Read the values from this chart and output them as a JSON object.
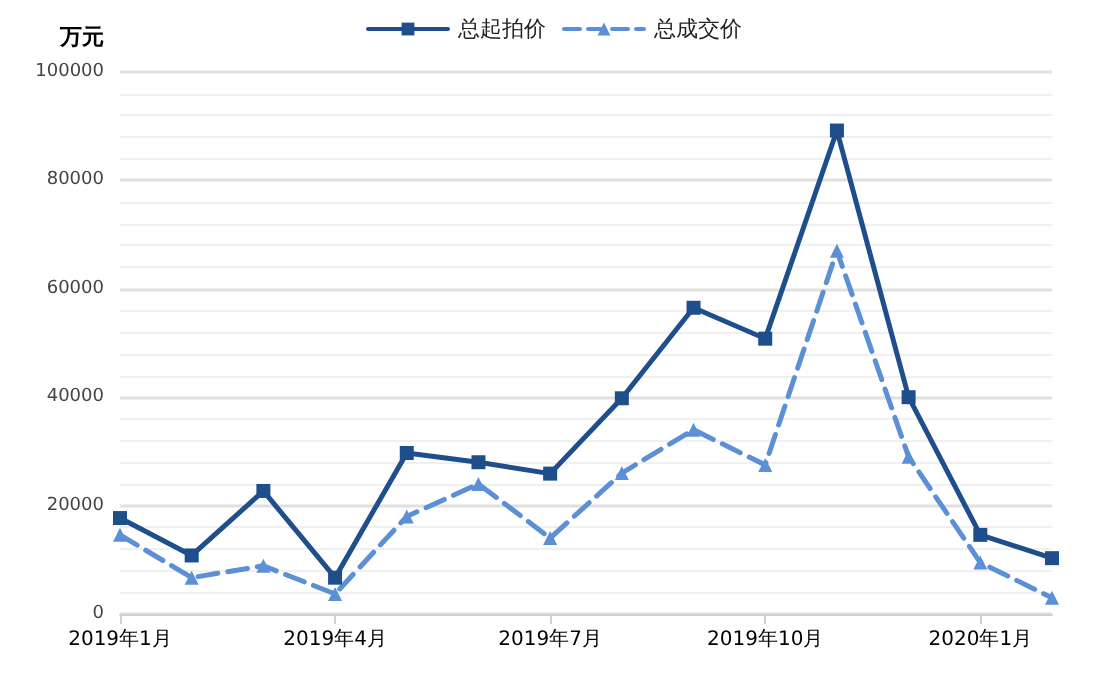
{
  "chart_data": {
    "type": "line",
    "ylabel": "万元",
    "categories": [
      "2019年1月",
      null,
      null,
      "2019年4月",
      null,
      null,
      "2019年7月",
      null,
      null,
      "2019年10月",
      null,
      null,
      "2020年1月",
      null
    ],
    "series": [
      {
        "name": "总起拍价",
        "color": "#1f4e8c",
        "marker": "square",
        "line_style": "solid",
        "values": [
          17700,
          10800,
          22700,
          6700,
          29700,
          28000,
          25900,
          39800,
          56500,
          50800,
          89200,
          40000,
          14600,
          10300
        ]
      },
      {
        "name": "总成交价",
        "color": "#5b8fd6",
        "marker": "triangle",
        "line_style": "dashed",
        "values": [
          14600,
          6700,
          8900,
          3700,
          18000,
          24000,
          14000,
          26000,
          34000,
          27500,
          67000,
          29000,
          9500,
          3000
        ]
      }
    ],
    "ylim": [
      0,
      100000
    ],
    "yticks": [
      0,
      20000,
      40000,
      60000,
      80000,
      100000
    ],
    "grid": "y",
    "legend": "top"
  }
}
